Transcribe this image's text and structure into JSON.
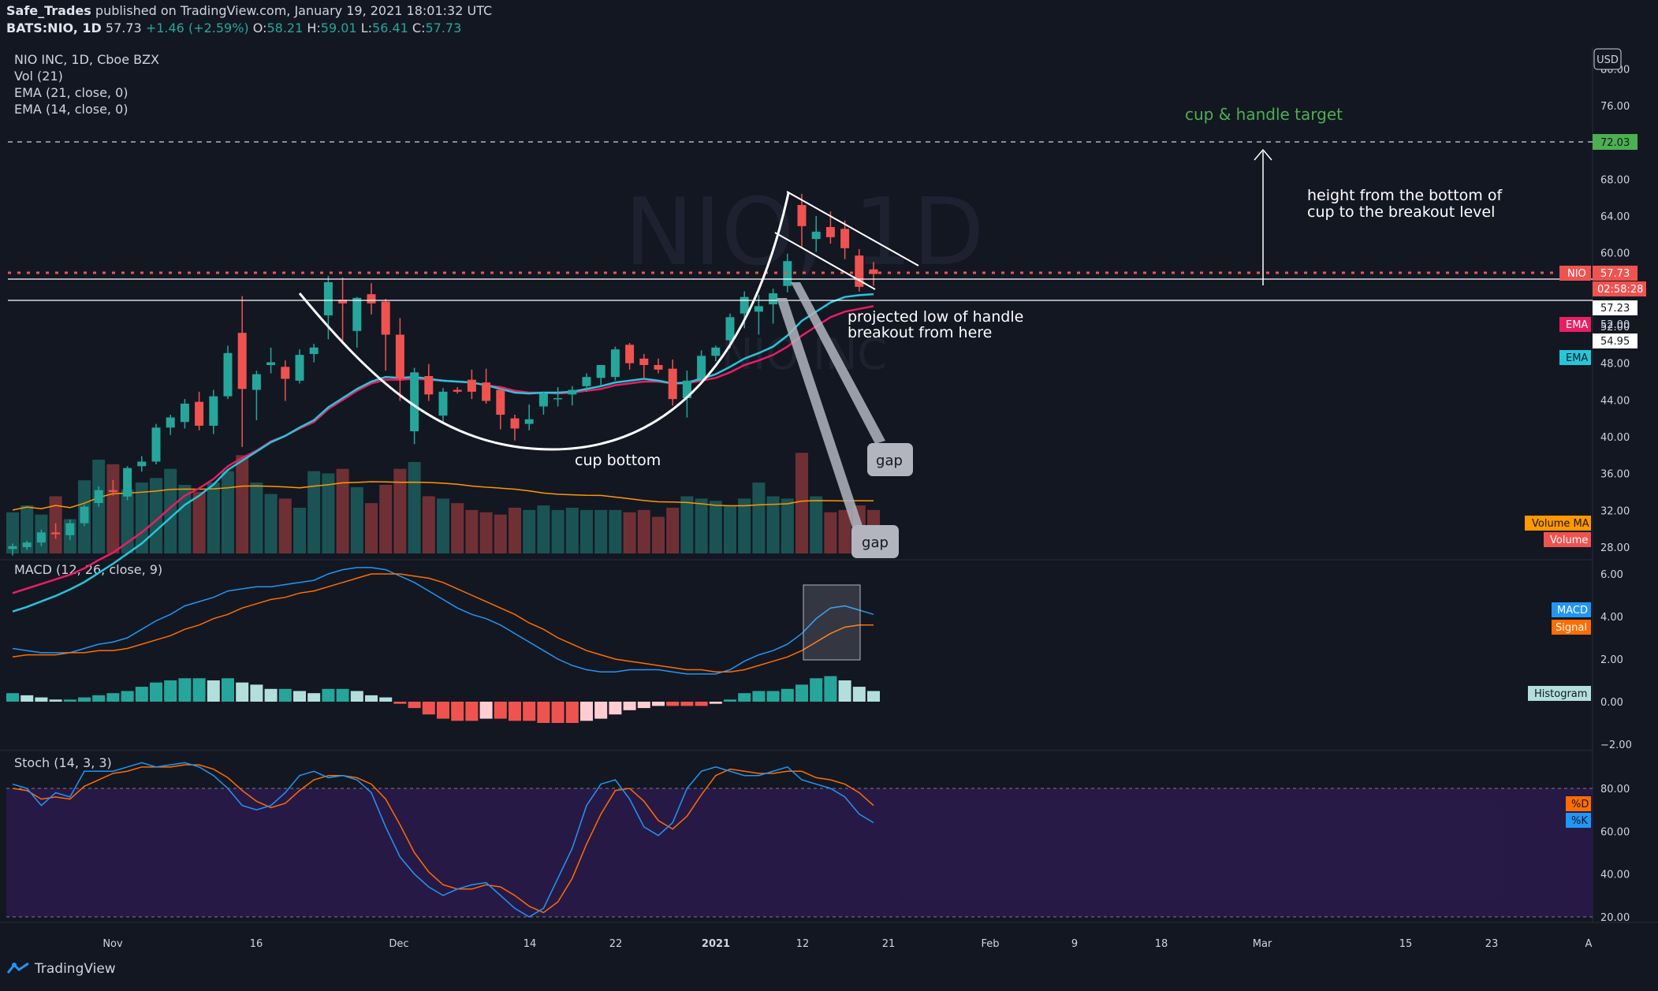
{
  "header": {
    "author": "Safe_Trades",
    "published": "published on TradingView.com, January 19, 2021 18:01:32 UTC",
    "symbol": "BATS:NIO, 1D",
    "last": "57.73",
    "change": "+1.46 (+2.59%)",
    "o_label": "O:",
    "o": "58.21",
    "h_label": "H:",
    "h": "59.01",
    "l_label": "L:",
    "l": "56.41",
    "c_label": "C:",
    "c": "57.73"
  },
  "legend": {
    "title": "NIO INC, 1D, Cboe BZX",
    "vol": "Vol (21)",
    "ema21": "EMA (21, close, 0)",
    "ema14": "EMA (14, close, 0)",
    "macd": "MACD (12, 26, close, 9)",
    "stoch": "Stoch (14, 3, 3)"
  },
  "currency": "USD",
  "watermark": "NIO, 1D",
  "watermark_sub": "NIO INC",
  "annotations": {
    "target": "cup & handle target",
    "height_line1": "height from the bottom of",
    "height_line2": "cup to the breakout level",
    "projected_line1": "projected low of handle",
    "projected_line2": "breakout from here",
    "cup_bottom": "cup bottom",
    "gap1": "gap",
    "gap2": "gap"
  },
  "price_labels": {
    "target": "72.03",
    "nio_tag": "NIO",
    "nio_price": "57.73",
    "countdown": "02:58:28",
    "line1": "57.23",
    "ema_tag": "EMA",
    "ema_red": "52.00",
    "line2": "54.95",
    "ema_tag2": "EMA"
  },
  "pane_labels": {
    "volume_ma": "Volume MA",
    "volume": "Volume",
    "macd": "MACD",
    "signal": "Signal",
    "histogram": "Histogram",
    "d": "%D",
    "k": "%K"
  },
  "price_axis": [
    "80.00",
    "76.00",
    "72.00",
    "68.00",
    "64.00",
    "60.00",
    "56.00",
    "52.00",
    "48.00",
    "44.00",
    "40.00",
    "36.00",
    "32.00",
    "28.00"
  ],
  "macd_axis": [
    "6.00",
    "4.00",
    "2.00",
    "0.00",
    "−2.00"
  ],
  "stoch_axis": [
    "80.00",
    "60.00",
    "40.00",
    "20.00"
  ],
  "time_axis": [
    "Nov",
    "16",
    "Dec",
    "14",
    "22",
    "2021",
    "12",
    "21",
    "Feb",
    "9",
    "18",
    "Mar",
    "15",
    "23",
    "A"
  ],
  "footer": "TradingView",
  "colors": {
    "bg": "#131722",
    "up": "#26a69a",
    "down": "#ef5350",
    "ema21": "#e91e63",
    "ema14": "#26c6da",
    "macd": "#2196f3",
    "signal": "#ff6d00",
    "stoch_bg": "#2a1a4a",
    "target_green": "#4caf50"
  },
  "chart_data": {
    "type": "candlestick",
    "candles": [
      {
        "d": "Oct 27",
        "o": 27.8,
        "h": 28.4,
        "l": 27.1,
        "c": 28.1
      },
      {
        "d": "Oct 28",
        "o": 28.0,
        "h": 28.7,
        "l": 27.7,
        "c": 28.5
      },
      {
        "d": "Oct 29",
        "o": 28.5,
        "h": 29.9,
        "l": 28.1,
        "c": 29.6
      },
      {
        "d": "Oct 30",
        "o": 29.6,
        "h": 30.6,
        "l": 28.9,
        "c": 29.4
      },
      {
        "d": "Nov 2",
        "o": 29.3,
        "h": 31.0,
        "l": 28.8,
        "c": 30.6
      },
      {
        "d": "Nov 3",
        "o": 30.6,
        "h": 32.6,
        "l": 30.3,
        "c": 32.4
      },
      {
        "d": "Nov 4",
        "o": 32.8,
        "h": 34.6,
        "l": 32.4,
        "c": 34.2
      },
      {
        "d": "Nov 5",
        "o": 34.2,
        "h": 35.3,
        "l": 33.6,
        "c": 34.0
      },
      {
        "d": "Nov 6",
        "o": 33.5,
        "h": 36.8,
        "l": 33.1,
        "c": 36.6
      },
      {
        "d": "Nov 9",
        "o": 36.8,
        "h": 37.9,
        "l": 36.2,
        "c": 37.3
      },
      {
        "d": "Nov 10",
        "o": 37.3,
        "h": 41.4,
        "l": 37.0,
        "c": 41.0
      },
      {
        "d": "Nov 11",
        "o": 41.0,
        "h": 42.4,
        "l": 40.2,
        "c": 42.1
      },
      {
        "d": "Nov 12",
        "o": 41.6,
        "h": 44.1,
        "l": 40.9,
        "c": 43.6
      },
      {
        "d": "Nov 13",
        "o": 43.8,
        "h": 44.9,
        "l": 40.7,
        "c": 41.2
      },
      {
        "d": "Nov 16",
        "o": 41.2,
        "h": 45.1,
        "l": 40.3,
        "c": 44.4
      },
      {
        "d": "Nov 17",
        "o": 44.4,
        "h": 49.9,
        "l": 44.1,
        "c": 49.1
      },
      {
        "d": "Nov 18",
        "o": 51.3,
        "h": 55.3,
        "l": 38.9,
        "c": 45.2
      },
      {
        "d": "Nov 19",
        "o": 45.1,
        "h": 47.2,
        "l": 41.8,
        "c": 46.8
      },
      {
        "d": "Nov 20",
        "o": 47.8,
        "h": 49.7,
        "l": 46.9,
        "c": 48.1
      },
      {
        "d": "Nov 23",
        "o": 47.6,
        "h": 48.3,
        "l": 43.9,
        "c": 46.3
      },
      {
        "d": "Nov 24",
        "o": 46.1,
        "h": 49.5,
        "l": 45.8,
        "c": 48.9
      },
      {
        "d": "Nov 25",
        "o": 49.0,
        "h": 50.1,
        "l": 48.1,
        "c": 49.7
      },
      {
        "d": "Nov 27",
        "o": 53.2,
        "h": 57.5,
        "l": 50.6,
        "c": 56.8
      },
      {
        "d": "Nov 30",
        "o": 54.9,
        "h": 57.3,
        "l": 50.1,
        "c": 54.5
      },
      {
        "d": "Dec 1",
        "o": 51.5,
        "h": 55.2,
        "l": 49.7,
        "c": 55.1
      },
      {
        "d": "Dec 2",
        "o": 55.5,
        "h": 56.7,
        "l": 53.3,
        "c": 54.5
      },
      {
        "d": "Dec 3",
        "o": 54.7,
        "h": 55.0,
        "l": 47.2,
        "c": 51.1
      },
      {
        "d": "Dec 4",
        "o": 51.1,
        "h": 52.9,
        "l": 43.9,
        "c": 46.3
      },
      {
        "d": "Dec 7",
        "o": 40.6,
        "h": 47.5,
        "l": 39.2,
        "c": 47.0
      },
      {
        "d": "Dec 8",
        "o": 46.6,
        "h": 47.9,
        "l": 43.9,
        "c": 44.6
      },
      {
        "d": "Dec 9",
        "o": 42.3,
        "h": 45.3,
        "l": 41.6,
        "c": 44.9
      },
      {
        "d": "Dec 10",
        "o": 45.1,
        "h": 45.4,
        "l": 44.7,
        "c": 44.9
      },
      {
        "d": "Dec 11",
        "o": 46.2,
        "h": 47.3,
        "l": 44.1,
        "c": 44.9
      },
      {
        "d": "Dec 14",
        "o": 45.9,
        "h": 47.4,
        "l": 43.6,
        "c": 43.9
      },
      {
        "d": "Dec 15",
        "o": 45.1,
        "h": 45.3,
        "l": 40.8,
        "c": 42.4
      },
      {
        "d": "Dec 16",
        "o": 42.0,
        "h": 42.4,
        "l": 39.6,
        "c": 40.9
      },
      {
        "d": "Dec 17",
        "o": 41.4,
        "h": 43.5,
        "l": 40.7,
        "c": 41.9
      },
      {
        "d": "Dec 18",
        "o": 43.3,
        "h": 44.9,
        "l": 42.4,
        "c": 44.7
      },
      {
        "d": "Dec 21",
        "o": 44.1,
        "h": 45.4,
        "l": 43.3,
        "c": 44.2
      },
      {
        "d": "Dec 22",
        "o": 44.6,
        "h": 45.5,
        "l": 43.4,
        "c": 45.1
      },
      {
        "d": "Dec 23",
        "o": 45.5,
        "h": 46.9,
        "l": 44.9,
        "c": 46.5
      },
      {
        "d": "Dec 24",
        "o": 46.4,
        "h": 47.6,
        "l": 45.6,
        "c": 47.8
      },
      {
        "d": "Dec 28",
        "o": 46.5,
        "h": 49.8,
        "l": 46.1,
        "c": 49.5
      },
      {
        "d": "Dec 29",
        "o": 50.0,
        "h": 50.2,
        "l": 47.3,
        "c": 48.0
      },
      {
        "d": "Dec 30",
        "o": 48.5,
        "h": 49.0,
        "l": 46.3,
        "c": 47.8
      },
      {
        "d": "Dec 31",
        "o": 47.8,
        "h": 48.5,
        "l": 46.9,
        "c": 47.3
      },
      {
        "d": "Jan 4",
        "o": 47.4,
        "h": 48.4,
        "l": 43.4,
        "c": 44.1
      },
      {
        "d": "Jan 5",
        "o": 44.2,
        "h": 47.2,
        "l": 42.1,
        "c": 46.1
      },
      {
        "d": "Jan 6",
        "o": 46.3,
        "h": 49.4,
        "l": 46.1,
        "c": 48.8
      },
      {
        "d": "Jan 7",
        "o": 48.8,
        "h": 49.9,
        "l": 48.2,
        "c": 49.7
      },
      {
        "d": "Jan 8",
        "o": 50.5,
        "h": 53.4,
        "l": 49.6,
        "c": 53.0
      },
      {
        "d": "Jan 11",
        "o": 53.4,
        "h": 55.8,
        "l": 51.8,
        "c": 55.2
      },
      {
        "d": "Jan 12",
        "o": 53.6,
        "h": 55.4,
        "l": 51.1,
        "c": 54.2
      },
      {
        "d": "Jan 13",
        "o": 54.4,
        "h": 56.1,
        "l": 52.3,
        "c": 55.6
      },
      {
        "d": "Jan 14",
        "o": 56.4,
        "h": 59.9,
        "l": 55.7,
        "c": 59.1
      },
      {
        "d": "Jan 15",
        "o": 65.2,
        "h": 66.4,
        "l": 60.6,
        "c": 62.9
      },
      {
        "d": "Jan 19",
        "o": 61.5,
        "h": 64.0,
        "l": 60.1,
        "c": 62.3
      },
      {
        "d": "Jan 20",
        "o": 62.8,
        "h": 64.5,
        "l": 61.0,
        "c": 61.7
      },
      {
        "d": "Jan 21",
        "o": 62.6,
        "h": 63.5,
        "l": 59.3,
        "c": 60.5
      },
      {
        "d": "Jan 22",
        "o": 59.7,
        "h": 60.4,
        "l": 55.8,
        "c": 56.3
      },
      {
        "d": "Jan 25",
        "o": 58.2,
        "h": 59.0,
        "l": 56.4,
        "c": 57.7
      }
    ],
    "volume": [
      18,
      21,
      17,
      25,
      15,
      32,
      41,
      39,
      28,
      31,
      33,
      37,
      30,
      27,
      31,
      36,
      43,
      31,
      26,
      24,
      20,
      36,
      35,
      37,
      29,
      22,
      30,
      37,
      40,
      25,
      24,
      22,
      19,
      18,
      17,
      20,
      19,
      21,
      19,
      20,
      19,
      19,
      19,
      18,
      19,
      16,
      20,
      25,
      24,
      23,
      21,
      24,
      31,
      25,
      24,
      44,
      25,
      18,
      19,
      21,
      19
    ],
    "ema21": [
      23.0,
      23.5,
      24.0,
      24.5,
      25.0,
      25.7,
      26.6,
      27.4,
      28.5,
      29.6,
      30.9,
      32.3,
      33.6,
      34.4,
      35.4,
      36.8,
      37.7,
      38.5,
      39.5,
      40.1,
      40.9,
      41.6,
      43.0,
      44.0,
      45.0,
      45.8,
      46.2,
      46.2,
      46.3,
      46.2,
      46.1,
      46.0,
      45.9,
      45.6,
      45.4,
      45.0,
      44.8,
      44.8,
      44.7,
      44.8,
      45.0,
      45.2,
      45.6,
      45.8,
      46.0,
      46.0,
      45.8,
      45.8,
      46.1,
      46.4,
      47.0,
      47.8,
      48.3,
      48.9,
      49.8,
      51.0,
      52.0,
      53.0,
      53.6,
      53.9,
      54.2
    ],
    "ema14": [
      21.0,
      21.5,
      22.1,
      22.7,
      23.4,
      24.2,
      25.2,
      26.2,
      27.3,
      28.4,
      29.8,
      31.2,
      32.6,
      33.6,
      34.8,
      36.4,
      37.4,
      38.4,
      39.4,
      40.1,
      41.0,
      41.8,
      43.2,
      44.2,
      45.2,
      46.0,
      46.5,
      46.4,
      46.5,
      46.3,
      46.1,
      46.0,
      45.9,
      45.6,
      45.2,
      44.8,
      44.7,
      44.8,
      44.8,
      44.9,
      45.2,
      45.5,
      45.9,
      46.1,
      46.3,
      46.1,
      45.8,
      45.9,
      46.3,
      46.8,
      47.6,
      48.5,
      49.1,
      49.8,
      51.0,
      52.6,
      53.6,
      54.6,
      55.2,
      55.4,
      55.5
    ],
    "macd": {
      "macd": [
        2.5,
        2.4,
        2.3,
        2.3,
        2.3,
        2.5,
        2.7,
        2.8,
        3.0,
        3.4,
        3.8,
        4.1,
        4.5,
        4.7,
        4.9,
        5.2,
        5.3,
        5.4,
        5.4,
        5.5,
        5.6,
        5.7,
        6.0,
        6.2,
        6.3,
        6.3,
        6.2,
        5.9,
        5.6,
        5.2,
        4.8,
        4.4,
        4.1,
        3.9,
        3.6,
        3.2,
        2.8,
        2.4,
        2.0,
        1.7,
        1.5,
        1.4,
        1.4,
        1.5,
        1.5,
        1.5,
        1.4,
        1.3,
        1.3,
        1.3,
        1.5,
        1.9,
        2.2,
        2.4,
        2.7,
        3.2,
        3.9,
        4.4,
        4.5,
        4.3,
        4.1
      ],
      "signal": [
        2.1,
        2.2,
        2.2,
        2.2,
        2.3,
        2.3,
        2.4,
        2.4,
        2.5,
        2.7,
        2.9,
        3.1,
        3.4,
        3.6,
        3.9,
        4.1,
        4.4,
        4.6,
        4.8,
        4.9,
        5.1,
        5.2,
        5.4,
        5.6,
        5.8,
        6.0,
        6.0,
        6.0,
        5.9,
        5.8,
        5.6,
        5.3,
        5.0,
        4.7,
        4.4,
        4.1,
        3.7,
        3.4,
        3.0,
        2.7,
        2.4,
        2.2,
        2.0,
        1.9,
        1.8,
        1.7,
        1.6,
        1.5,
        1.5,
        1.4,
        1.4,
        1.5,
        1.7,
        1.9,
        2.1,
        2.4,
        2.8,
        3.2,
        3.5,
        3.6,
        3.6
      ],
      "hist": [
        0.4,
        0.3,
        0.2,
        0.1,
        0.1,
        0.2,
        0.3,
        0.4,
        0.5,
        0.7,
        0.9,
        1.0,
        1.1,
        1.1,
        1.0,
        1.1,
        0.9,
        0.8,
        0.6,
        0.6,
        0.5,
        0.4,
        0.6,
        0.6,
        0.5,
        0.3,
        0.2,
        -0.1,
        -0.3,
        -0.6,
        -0.8,
        -0.9,
        -0.9,
        -0.8,
        -0.8,
        -0.9,
        -0.9,
        -1.0,
        -1.0,
        -1.0,
        -0.9,
        -0.8,
        -0.6,
        -0.4,
        -0.3,
        -0.2,
        -0.2,
        -0.2,
        -0.2,
        -0.1,
        0.1,
        0.4,
        0.5,
        0.5,
        0.6,
        0.8,
        1.1,
        1.2,
        1.0,
        0.7,
        0.5
      ]
    },
    "stoch": {
      "k": [
        82,
        80,
        72,
        78,
        76,
        88,
        88,
        88,
        90,
        92,
        90,
        91,
        92,
        90,
        86,
        80,
        72,
        70,
        72,
        78,
        86,
        88,
        85,
        86,
        84,
        78,
        62,
        48,
        40,
        34,
        30,
        33,
        35,
        36,
        30,
        24,
        20,
        24,
        38,
        52,
        72,
        82,
        84,
        75,
        62,
        58,
        64,
        80,
        88,
        90,
        88,
        86,
        86,
        88,
        90,
        84,
        82,
        80,
        76,
        68,
        64
      ],
      "d": [
        80,
        79,
        75,
        76,
        75,
        81,
        84,
        87,
        88,
        90,
        90,
        90,
        91,
        91,
        89,
        85,
        79,
        74,
        71,
        73,
        79,
        84,
        86,
        86,
        85,
        82,
        75,
        63,
        50,
        41,
        35,
        33,
        33,
        35,
        34,
        30,
        25,
        22,
        27,
        38,
        54,
        68,
        79,
        80,
        74,
        65,
        61,
        67,
        77,
        86,
        89,
        88,
        87,
        87,
        88,
        88,
        85,
        84,
        82,
        78,
        72
      ]
    },
    "ylim": [
      28,
      80
    ],
    "target": 72.03,
    "current": 57.73
  }
}
